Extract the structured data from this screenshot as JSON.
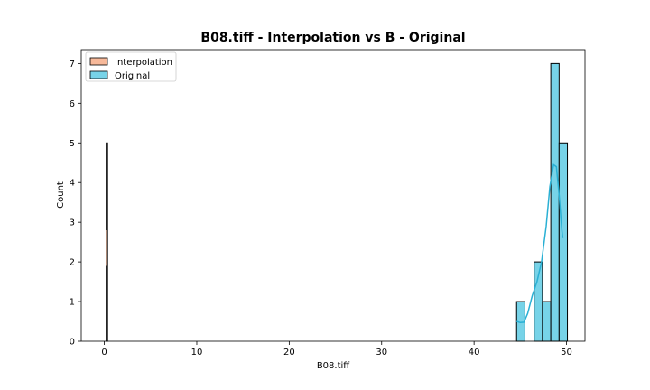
{
  "chart_data": {
    "type": "bar",
    "title": "B08.tiff - Interpolation vs B - Original",
    "xlabel": "B08.tiff",
    "ylabel": "Count",
    "xlim": [
      -2.5,
      52
    ],
    "ylim": [
      0,
      7.35
    ],
    "xticks": [
      0,
      10,
      20,
      30,
      40,
      50
    ],
    "yticks": [
      0,
      1,
      2,
      3,
      4,
      5,
      6,
      7
    ],
    "grid": false,
    "legend_position": "upper-left",
    "series": [
      {
        "name": "Interpolation",
        "color": "#f7b99a",
        "bins": [
          {
            "x0": 0.2,
            "x1": 0.35,
            "count": 5
          }
        ],
        "kde": [
          [
            0.25,
            1.9
          ],
          [
            0.25,
            2.8
          ]
        ]
      },
      {
        "name": "Original",
        "color": "#77d3e8",
        "line_color": "#2ab0d4",
        "bins": [
          {
            "x0": 44.6,
            "x1": 45.5,
            "count": 1
          },
          {
            "x0": 45.5,
            "x1": 46.5,
            "count": 0
          },
          {
            "x0": 46.5,
            "x1": 47.4,
            "count": 2
          },
          {
            "x0": 47.4,
            "x1": 48.3,
            "count": 1
          },
          {
            "x0": 48.3,
            "x1": 49.2,
            "count": 7
          },
          {
            "x0": 49.2,
            "x1": 50.1,
            "count": 5
          }
        ],
        "kde": [
          [
            44.6,
            0.5
          ],
          [
            45.0,
            0.47
          ],
          [
            45.4,
            0.48
          ],
          [
            45.8,
            0.7
          ],
          [
            46.3,
            1.15
          ],
          [
            46.8,
            1.5
          ],
          [
            47.3,
            2.0
          ],
          [
            47.8,
            2.9
          ],
          [
            48.2,
            3.9
          ],
          [
            48.6,
            4.45
          ],
          [
            48.9,
            4.4
          ],
          [
            49.2,
            3.7
          ],
          [
            49.5,
            2.8
          ],
          [
            49.6,
            2.6
          ]
        ]
      }
    ]
  }
}
